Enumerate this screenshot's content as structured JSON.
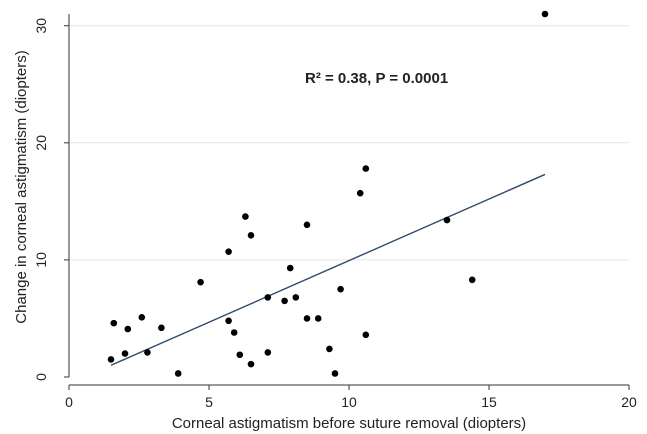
{
  "chart_data": {
    "type": "scatter",
    "xlabel": "Corneal astigmatism before suture removal (diopters)",
    "ylabel": "Change in corneal astigmatism (diopters)",
    "annotation": "R² = 0.38, P = 0.0001",
    "xlim": [
      0,
      20
    ],
    "ylim": [
      0,
      31
    ],
    "x_ticks": [
      0,
      5,
      10,
      15,
      20
    ],
    "y_ticks": [
      0,
      10,
      20,
      30
    ],
    "grid": "horizontal",
    "points": [
      {
        "x": 1.5,
        "y": 1.5
      },
      {
        "x": 1.6,
        "y": 4.6
      },
      {
        "x": 2.0,
        "y": 2.0
      },
      {
        "x": 2.1,
        "y": 4.1
      },
      {
        "x": 2.6,
        "y": 5.1
      },
      {
        "x": 2.8,
        "y": 2.1
      },
      {
        "x": 3.3,
        "y": 4.2
      },
      {
        "x": 3.9,
        "y": 0.3
      },
      {
        "x": 4.7,
        "y": 8.1
      },
      {
        "x": 5.7,
        "y": 10.7
      },
      {
        "x": 5.7,
        "y": 4.8
      },
      {
        "x": 5.9,
        "y": 3.8
      },
      {
        "x": 6.1,
        "y": 1.9
      },
      {
        "x": 6.3,
        "y": 13.7
      },
      {
        "x": 6.5,
        "y": 12.1
      },
      {
        "x": 6.5,
        "y": 1.1
      },
      {
        "x": 7.1,
        "y": 6.8
      },
      {
        "x": 7.1,
        "y": 2.1
      },
      {
        "x": 7.7,
        "y": 6.5
      },
      {
        "x": 7.9,
        "y": 9.3
      },
      {
        "x": 8.1,
        "y": 6.8
      },
      {
        "x": 8.5,
        "y": 13.0
      },
      {
        "x": 8.5,
        "y": 5.0
      },
      {
        "x": 8.9,
        "y": 5.0
      },
      {
        "x": 9.3,
        "y": 2.4
      },
      {
        "x": 9.5,
        "y": 0.3
      },
      {
        "x": 9.7,
        "y": 7.5
      },
      {
        "x": 10.4,
        "y": 15.7
      },
      {
        "x": 10.6,
        "y": 17.8
      },
      {
        "x": 10.6,
        "y": 3.6
      },
      {
        "x": 13.5,
        "y": 13.4
      },
      {
        "x": 14.4,
        "y": 8.3
      },
      {
        "x": 17.0,
        "y": 31.0
      }
    ],
    "fit_line": {
      "x": [
        1.5,
        17.0
      ],
      "y": [
        1.0,
        17.3
      ]
    },
    "colors": {
      "points": "#000000",
      "fit_line": "#2f4a6e",
      "grid": "#e6e6e6",
      "axis": "#333333"
    }
  }
}
